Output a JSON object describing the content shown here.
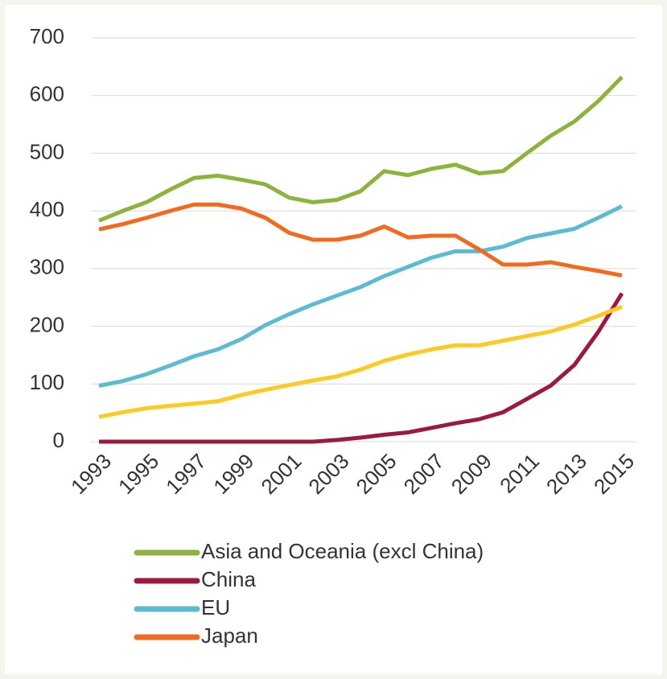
{
  "chart_data": {
    "type": "line",
    "x": [
      1993,
      1994,
      1995,
      1996,
      1997,
      1998,
      1999,
      2000,
      2001,
      2002,
      2003,
      2004,
      2005,
      2006,
      2007,
      2008,
      2009,
      2010,
      2011,
      2012,
      2013,
      2014,
      2015
    ],
    "xlim": [
      1993,
      2015
    ],
    "xticks": [
      1993,
      1995,
      1997,
      1999,
      2001,
      2003,
      2005,
      2007,
      2009,
      2011,
      2013,
      2015
    ],
    "ylim": [
      0,
      700
    ],
    "yticks": [
      0,
      100,
      200,
      300,
      400,
      500,
      600,
      700
    ],
    "grid": true,
    "series": [
      {
        "name": "Asia and Oceania (excl China)",
        "color": "#8cb43c",
        "values": [
          383,
          400,
          415,
          437,
          457,
          461,
          454,
          446,
          423,
          415,
          419,
          434,
          469,
          462,
          473,
          480,
          465,
          469,
          500,
          530,
          555,
          590,
          632
        ]
      },
      {
        "name": "China",
        "color": "#9b1b3c",
        "values": [
          0,
          0,
          0,
          0,
          0,
          0,
          0,
          0,
          0,
          0,
          3,
          7,
          12,
          16,
          24,
          32,
          39,
          51,
          74,
          97,
          133,
          190,
          257
        ]
      },
      {
        "name": "EU",
        "color": "#5bbcd1",
        "values": [
          97,
          105,
          117,
          132,
          148,
          160,
          178,
          202,
          221,
          238,
          253,
          268,
          287,
          303,
          319,
          330,
          330,
          338,
          353,
          361,
          369,
          388,
          408
        ]
      },
      {
        "name": "Japan",
        "color": "#f26a1f",
        "values": [
          368,
          377,
          388,
          400,
          411,
          411,
          404,
          388,
          362,
          350,
          350,
          357,
          373,
          354,
          357,
          357,
          333,
          307,
          307,
          311,
          303,
          296,
          288
        ]
      },
      {
        "color": "#fdc923",
        "values": [
          43,
          51,
          58,
          62,
          66,
          70,
          81,
          90,
          98,
          106,
          113,
          125,
          140,
          151,
          160,
          167,
          167,
          175,
          183,
          191,
          203,
          218,
          234
        ]
      }
    ]
  }
}
